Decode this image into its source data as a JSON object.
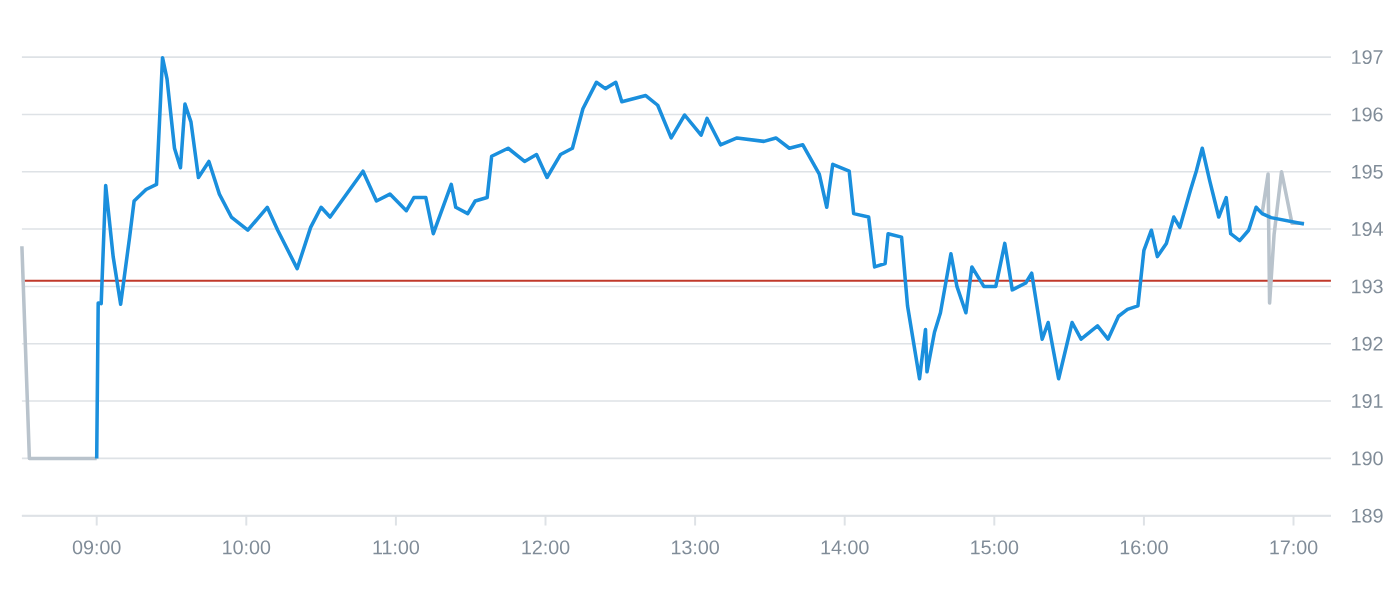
{
  "chart_data": {
    "type": "line",
    "xlim": [
      8.5,
      17.25
    ],
    "ylim": [
      189,
      197
    ],
    "xticks": [
      {
        "value": 9,
        "label": "09:00"
      },
      {
        "value": 10,
        "label": "10:00"
      },
      {
        "value": 11,
        "label": "11:00"
      },
      {
        "value": 12,
        "label": "12:00"
      },
      {
        "value": 13,
        "label": "13:00"
      },
      {
        "value": 14,
        "label": "14:00"
      },
      {
        "value": 15,
        "label": "15:00"
      },
      {
        "value": 16,
        "label": "16:00"
      },
      {
        "value": 17,
        "label": "17:00"
      }
    ],
    "yticks": [
      189,
      190,
      191,
      192,
      193,
      194,
      195,
      196,
      197
    ],
    "grid": "y",
    "marker": "none",
    "line_style": "solid",
    "ref_lines": [
      {
        "axis": "y",
        "value": 193.1,
        "color": "#c0392b"
      }
    ],
    "series": [
      {
        "color": "#b9c3cc",
        "x": [
          8.5,
          8.55,
          9.0
        ],
        "values": [
          193.7,
          190.0,
          190.0
        ]
      },
      {
        "color": "#b9c3cc",
        "x": [
          16.79,
          16.83,
          16.84,
          16.87,
          16.92,
          16.99,
          17.07
        ],
        "values": [
          194.27,
          194.96,
          192.71,
          193.9,
          195.0,
          194.1,
          194.1
        ]
      },
      {
        "color": "#1a8fdd",
        "x": [
          9.0,
          9.01,
          9.03,
          9.06,
          9.11,
          9.16,
          9.22,
          9.25,
          9.33,
          9.4,
          9.44,
          9.47,
          9.52,
          9.56,
          9.59,
          9.63,
          9.68,
          9.75,
          9.82,
          9.9,
          10.01,
          10.14,
          10.21,
          10.34,
          10.43,
          10.5,
          10.56,
          10.78,
          10.87,
          10.96,
          11.07,
          11.12,
          11.2,
          11.25,
          11.37,
          11.4,
          11.48,
          11.53,
          11.61,
          11.64,
          11.75,
          11.86,
          11.94,
          12.01,
          12.1,
          12.18,
          12.25,
          12.34,
          12.4,
          12.47,
          12.51,
          12.67,
          12.75,
          12.84,
          12.93,
          13.04,
          13.08,
          13.17,
          13.28,
          13.46,
          13.54,
          13.63,
          13.72,
          13.83,
          13.88,
          13.92,
          14.03,
          14.06,
          14.16,
          14.2,
          14.27,
          14.29,
          14.38,
          14.42,
          14.5,
          14.54,
          14.55,
          14.6,
          14.64,
          14.71,
          14.75,
          14.81,
          14.85,
          14.93,
          15.01,
          15.07,
          15.12,
          15.21,
          15.25,
          15.32,
          15.36,
          15.43,
          15.52,
          15.58,
          15.69,
          15.76,
          15.83,
          15.89,
          15.96,
          16.0,
          16.05,
          16.09,
          16.15,
          16.2,
          16.24,
          16.31,
          16.35,
          16.39,
          16.44,
          16.5,
          16.55,
          16.58,
          16.64,
          16.7,
          16.75,
          16.79,
          16.85,
          17.07
        ],
        "values": [
          190.0,
          192.71,
          192.7,
          194.76,
          193.52,
          192.69,
          193.86,
          194.49,
          194.69,
          194.78,
          196.99,
          196.62,
          195.41,
          195.07,
          196.18,
          195.87,
          194.9,
          195.18,
          194.61,
          194.21,
          193.98,
          194.38,
          193.98,
          193.31,
          194.03,
          194.38,
          194.21,
          195.01,
          194.49,
          194.61,
          194.32,
          194.55,
          194.55,
          193.92,
          194.78,
          194.38,
          194.27,
          194.49,
          194.55,
          195.27,
          195.41,
          195.18,
          195.3,
          194.9,
          195.3,
          195.41,
          196.1,
          196.56,
          196.45,
          196.56,
          196.22,
          196.33,
          196.16,
          195.59,
          195.99,
          195.64,
          195.93,
          195.47,
          195.59,
          195.53,
          195.59,
          195.41,
          195.47,
          194.96,
          194.38,
          195.13,
          195.01,
          194.27,
          194.21,
          193.34,
          193.4,
          193.92,
          193.86,
          192.66,
          191.39,
          192.25,
          191.51,
          192.2,
          192.54,
          193.57,
          193.0,
          192.54,
          193.34,
          193.0,
          193.0,
          193.75,
          192.94,
          193.06,
          193.23,
          192.08,
          192.37,
          191.39,
          192.37,
          192.08,
          192.31,
          192.08,
          192.48,
          192.6,
          192.66,
          193.63,
          193.98,
          193.52,
          193.75,
          194.21,
          194.03,
          194.67,
          195.01,
          195.41,
          194.84,
          194.21,
          194.55,
          193.92,
          193.8,
          193.98,
          194.38,
          194.27,
          194.2,
          194.09
        ]
      }
    ]
  }
}
